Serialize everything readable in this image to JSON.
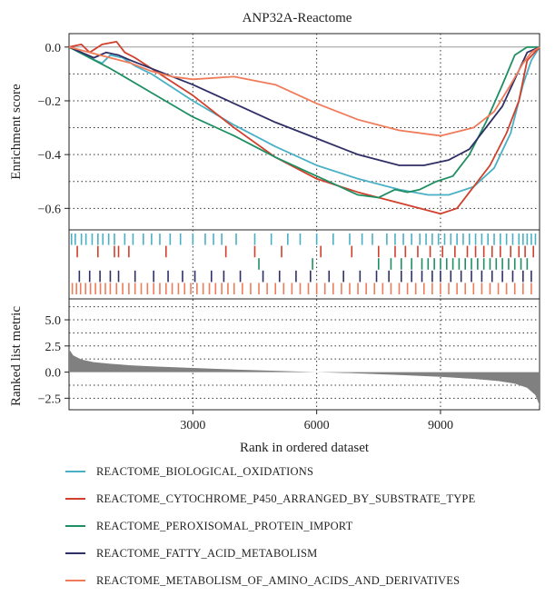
{
  "chart_data": {
    "type": "line",
    "title": "ANP32A-Reactome",
    "xlabel": "Rank in ordered dataset",
    "ylabel_top": "Enrichment score",
    "ylabel_bottom": "Ranked list metric",
    "xlim": [
      0,
      11400
    ],
    "x_ticks": [
      3000,
      6000,
      9000
    ],
    "x_tick_labels": [
      "3000",
      "6000",
      "9000"
    ],
    "es_ylim": [
      -0.68,
      0.05
    ],
    "es_ticks": [
      0.0,
      -0.2,
      -0.4,
      -0.6
    ],
    "es_tick_labels": [
      "0.0",
      "−0.2",
      "−0.4",
      "−0.6"
    ],
    "metric_ylim": [
      -3.6,
      7.0
    ],
    "metric_ticks": [
      5.0,
      2.5,
      0.0,
      -2.5
    ],
    "metric_tick_labels": [
      "5.0",
      "2.5",
      "0.0",
      "−2.5"
    ],
    "grid": "dotted",
    "legend_position": "bottom",
    "series": [
      {
        "name": "REACTOME_BIOLOGICAL_OXIDATIONS",
        "color": "#4ab0c5",
        "x": [
          0,
          300,
          500,
          800,
          1000,
          1300,
          1600,
          2000,
          3000,
          4000,
          5000,
          6000,
          7000,
          8000,
          8700,
          9200,
          9800,
          10300,
          10700,
          11000,
          11200,
          11400
        ],
        "y": [
          0.0,
          -0.02,
          -0.04,
          -0.06,
          -0.03,
          -0.04,
          -0.07,
          -0.1,
          -0.2,
          -0.29,
          -0.37,
          -0.44,
          -0.49,
          -0.53,
          -0.55,
          -0.55,
          -0.52,
          -0.45,
          -0.32,
          -0.14,
          -0.05,
          0.0
        ],
        "hits": [
          60,
          150,
          300,
          410,
          560,
          700,
          820,
          960,
          1100,
          1350,
          1550,
          1800,
          2000,
          2200,
          2450,
          2700,
          3000,
          3300,
          3500,
          3700,
          4050,
          4500,
          4900,
          5300,
          5600,
          6000,
          6400,
          6800,
          7100,
          7350,
          7700,
          7900,
          8100,
          8300,
          8500,
          8650,
          8800,
          8950,
          9100,
          9250,
          9400,
          9550,
          9700,
          9850,
          10000,
          10150,
          10300,
          10450,
          10600,
          10750,
          10900,
          11000,
          11100,
          11200,
          11300
        ]
      },
      {
        "name": "REACTOME_CYTOCHROME_P450_ARRANGED_BY_SUBSTRATE_TYPE",
        "color": "#d0402c",
        "x": [
          0,
          300,
          500,
          800,
          1150,
          1350,
          1600,
          2000,
          3000,
          4000,
          5000,
          6000,
          7000,
          8000,
          9000,
          9400,
          9800,
          10200,
          10600,
          10900,
          11100,
          11400
        ],
        "y": [
          0.0,
          0.01,
          -0.02,
          0.01,
          0.02,
          -0.02,
          -0.04,
          -0.08,
          -0.18,
          -0.3,
          -0.41,
          -0.49,
          -0.54,
          -0.58,
          -0.62,
          -0.6,
          -0.52,
          -0.44,
          -0.32,
          -0.2,
          -0.05,
          0.0
        ],
        "hits": [
          200,
          700,
          1100,
          1200,
          1450,
          2350,
          3800,
          4500,
          5150,
          6100,
          6850,
          7500,
          7900,
          8150,
          8450,
          8750,
          9050,
          9350,
          9650,
          9850,
          10050,
          10250,
          10450,
          10700,
          10900,
          11050,
          11250
        ]
      },
      {
        "name": "REACTOME_PEROXISOMAL_PROTEIN_IMPORT",
        "color": "#1f8f63",
        "x": [
          0,
          1000,
          2000,
          3000,
          4000,
          5000,
          6000,
          7000,
          7500,
          7900,
          8200,
          8500,
          8900,
          9300,
          9700,
          10100,
          10500,
          10800,
          11100,
          11400
        ],
        "y": [
          0.0,
          -0.08,
          -0.17,
          -0.26,
          -0.33,
          -0.41,
          -0.48,
          -0.55,
          -0.56,
          -0.53,
          -0.54,
          -0.53,
          -0.5,
          -0.48,
          -0.4,
          -0.28,
          -0.14,
          -0.03,
          0.0,
          0.0
        ],
        "hits": [
          4600,
          5900,
          7500,
          7800,
          8050,
          8300,
          8550,
          8700,
          8850,
          9000,
          9150,
          9300,
          9450,
          9600,
          9750,
          9900,
          10050,
          10200,
          10350,
          10500,
          10650,
          10800,
          10950,
          11100
        ]
      },
      {
        "name": "REACTOME_FATTY_ACID_METABOLISM",
        "color": "#2f2f66",
        "x": [
          0,
          300,
          600,
          900,
          1200,
          1500,
          2000,
          3000,
          4000,
          5000,
          6000,
          7000,
          8000,
          8600,
          9200,
          9700,
          10100,
          10500,
          10800,
          11100,
          11400
        ],
        "y": [
          0.0,
          -0.02,
          -0.04,
          -0.02,
          -0.03,
          -0.05,
          -0.08,
          -0.14,
          -0.21,
          -0.28,
          -0.34,
          -0.4,
          -0.44,
          -0.44,
          -0.42,
          -0.38,
          -0.3,
          -0.22,
          -0.12,
          -0.02,
          0.0
        ],
        "hits": [
          250,
          500,
          750,
          1000,
          1200,
          1600,
          2050,
          2400,
          2750,
          3050,
          3450,
          3750,
          4150,
          4700,
          5100,
          5500,
          5850,
          6300,
          6650,
          7050,
          7450,
          7750,
          8050,
          8300,
          8550,
          8800,
          9000,
          9250,
          9500,
          9750,
          10000,
          10250,
          10500,
          10750,
          11000,
          11200
        ]
      },
      {
        "name": "REACTOME_METABOLISM_OF_AMINO_ACIDS_AND_DERIVATIVES",
        "color": "#f07b5a",
        "x": [
          0,
          500,
          1000,
          1500,
          2000,
          2500,
          3000,
          4000,
          5000,
          6000,
          7000,
          8000,
          9000,
          9800,
          10300,
          10700,
          11000,
          11200,
          11400
        ],
        "y": [
          0.0,
          -0.02,
          -0.04,
          -0.06,
          -0.09,
          -0.11,
          -0.12,
          -0.11,
          -0.14,
          -0.21,
          -0.27,
          -0.31,
          -0.33,
          -0.3,
          -0.24,
          -0.14,
          -0.06,
          -0.02,
          0.0
        ],
        "hits": [
          80,
          180,
          280,
          400,
          520,
          640,
          760,
          880,
          1000,
          1150,
          1300,
          1450,
          1600,
          1750,
          1900,
          2050,
          2200,
          2350,
          2500,
          2650,
          2800,
          2950,
          3100,
          3250,
          3400,
          3550,
          3700,
          3850,
          4000,
          4200,
          4400,
          4600,
          4800,
          5000,
          5200,
          5400,
          5600,
          5800,
          6000,
          6200,
          6400,
          6600,
          6800,
          7000,
          7200,
          7400,
          7600,
          7800,
          8000,
          8200,
          8400,
          8600,
          8800,
          9000,
          9200,
          9400,
          9600,
          9800,
          10000,
          10200,
          10400,
          10600,
          10800,
          11000,
          11200
        ]
      }
    ],
    "ranked_metric": {
      "x": [
        0,
        100,
        300,
        600,
        1000,
        1500,
        2000,
        3000,
        4000,
        5000,
        6000,
        7000,
        8000,
        9000,
        9800,
        10400,
        10800,
        11100,
        11300,
        11400
      ],
      "y": [
        2.2,
        1.6,
        1.2,
        0.95,
        0.8,
        0.65,
        0.55,
        0.4,
        0.25,
        0.12,
        0.0,
        -0.12,
        -0.28,
        -0.45,
        -0.65,
        -0.85,
        -1.1,
        -1.5,
        -2.2,
        -3.2
      ],
      "color": "#808080"
    }
  }
}
